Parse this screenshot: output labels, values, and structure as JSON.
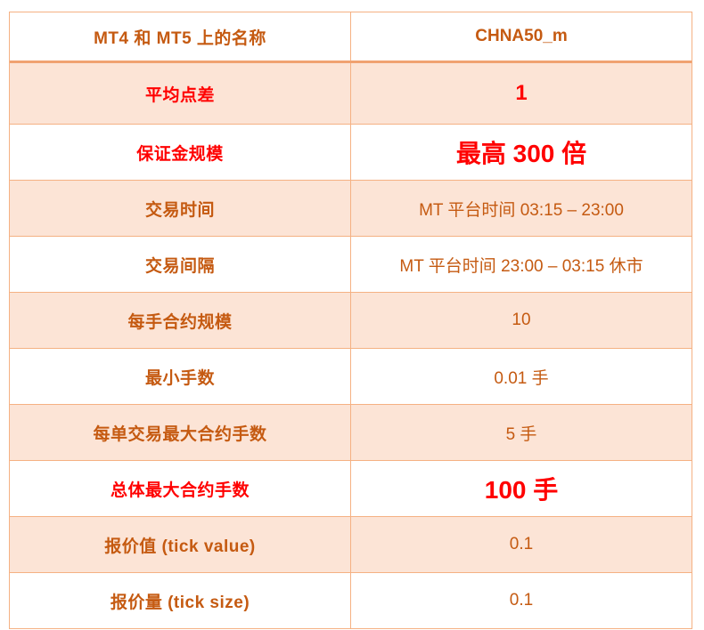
{
  "colors": {
    "orange_text": "#C55A11",
    "red_text": "#FF0000",
    "alt_row_bg": "#FCE4D6",
    "grid_border": "#F5B183",
    "header_divider": "#F0A271"
  },
  "table": {
    "rows": [
      {
        "label": "MT4 和 MT5 上的名称",
        "value": "CHNA50_m"
      },
      {
        "label": "平均点差",
        "value": "1"
      },
      {
        "label": "保证金规模",
        "value": "最高 300 倍"
      },
      {
        "label": "交易时间",
        "value": "MT 平台时间 03:15 – 23:00"
      },
      {
        "label": "交易间隔",
        "value": "MT 平台时间 23:00 – 03:15 休市"
      },
      {
        "label": "每手合约规模",
        "value": "10"
      },
      {
        "label": "最小手数",
        "value": "0.01 手"
      },
      {
        "label": "每单交易最大合约手数",
        "value": "5 手"
      },
      {
        "label": "总体最大合约手数",
        "value": "100 手"
      },
      {
        "label": "报价值 (tick value)",
        "value": "0.1"
      },
      {
        "label": "报价量 (tick size)",
        "value": "0.1"
      }
    ]
  }
}
